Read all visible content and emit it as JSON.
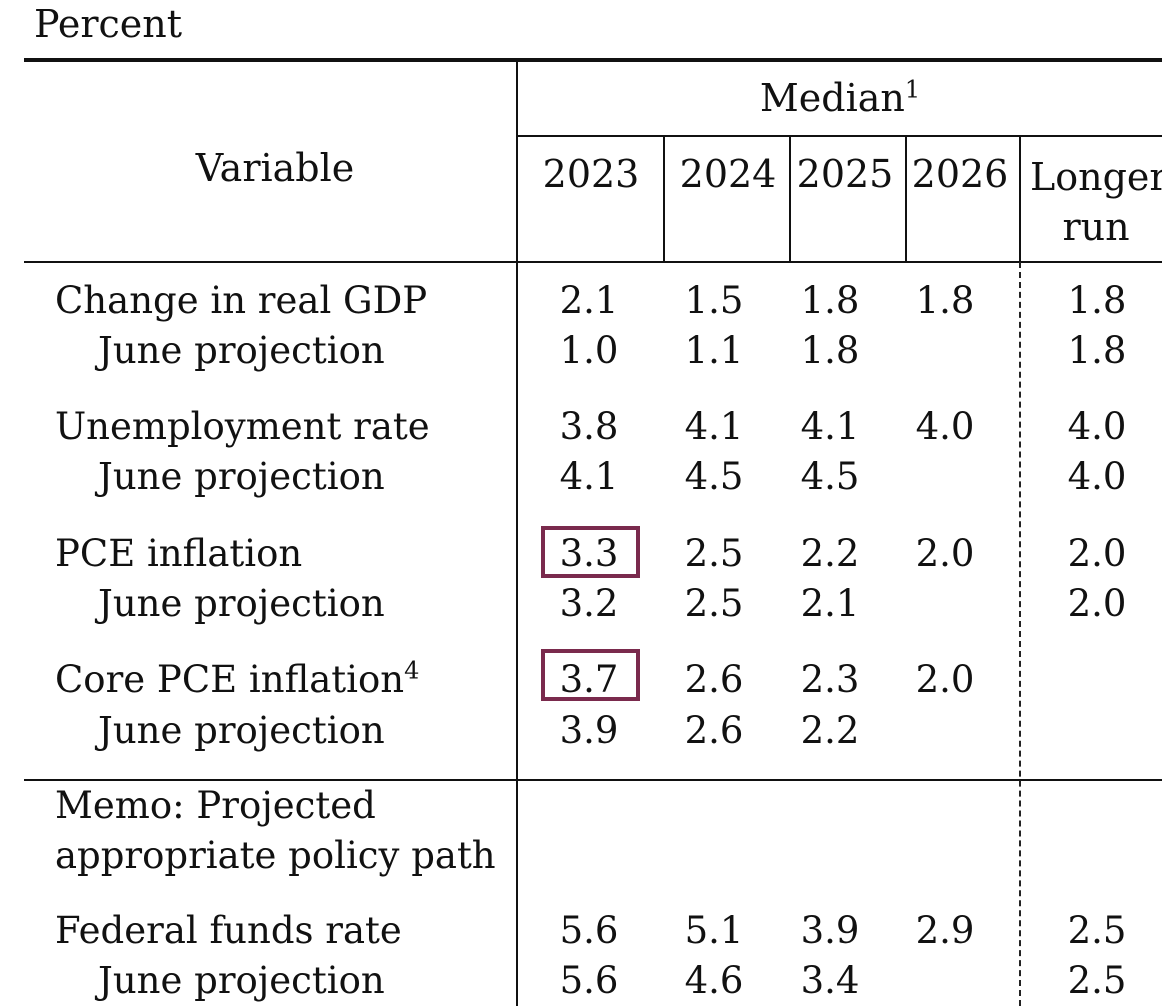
{
  "unit_label": "Percent",
  "header": {
    "variable": "Variable",
    "group": "Median",
    "group_note": "1",
    "columns": [
      "2023",
      "2024",
      "2025",
      "2026"
    ],
    "longer_run_line1": "Longer",
    "longer_run_line2": "run"
  },
  "rows": [
    {
      "label": "Change in real GDP",
      "note": "",
      "values": [
        "2.1",
        "1.5",
        "1.8",
        "1.8",
        "1.8"
      ],
      "sub_label": "June projection",
      "sub_values": [
        "1.0",
        "1.1",
        "1.8",
        "",
        "1.8"
      ]
    },
    {
      "label": "Unemployment rate",
      "note": "",
      "values": [
        "3.8",
        "4.1",
        "4.1",
        "4.0",
        "4.0"
      ],
      "sub_label": "June projection",
      "sub_values": [
        "4.1",
        "4.5",
        "4.5",
        "",
        "4.0"
      ]
    },
    {
      "label": "PCE inflation",
      "note": "",
      "values": [
        "3.3",
        "2.5",
        "2.2",
        "2.0",
        "2.0"
      ],
      "sub_label": "June projection",
      "sub_values": [
        "3.2",
        "2.5",
        "2.1",
        "",
        "2.0"
      ]
    },
    {
      "label": "Core PCE inflation",
      "note": "4",
      "values": [
        "3.7",
        "2.6",
        "2.3",
        "2.0",
        ""
      ],
      "sub_label": "June projection",
      "sub_values": [
        "3.9",
        "2.6",
        "2.2",
        "",
        ""
      ]
    }
  ],
  "memo": {
    "line1": "Memo: Projected",
    "line2": "appropriate policy path"
  },
  "memo_rows": [
    {
      "label": "Federal funds rate",
      "values": [
        "5.6",
        "5.1",
        "3.9",
        "2.9",
        "2.5"
      ],
      "sub_label": "June projection",
      "sub_values": [
        "5.6",
        "4.6",
        "3.4",
        "",
        "2.5"
      ]
    }
  ],
  "highlight_color": "#7a2a4d"
}
